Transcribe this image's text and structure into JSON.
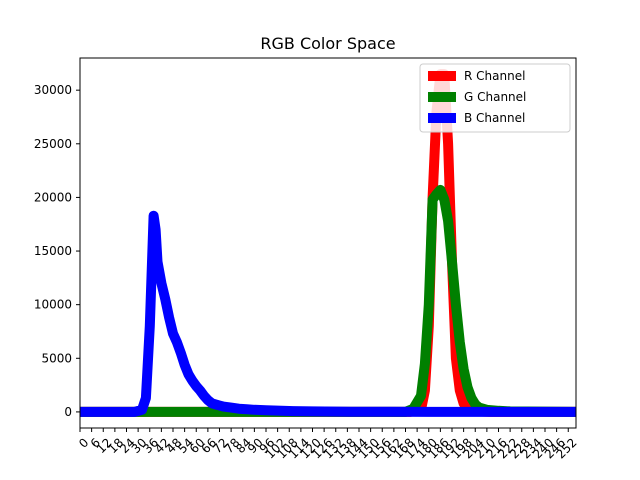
{
  "chart_data": {
    "type": "line",
    "title": "RGB Color Space",
    "xlabel": "",
    "ylabel": "",
    "xlim": [
      0,
      256
    ],
    "ylim": [
      -1500,
      33000
    ],
    "x_ticks": [
      0,
      6,
      12,
      18,
      24,
      30,
      36,
      42,
      48,
      54,
      60,
      66,
      72,
      78,
      84,
      90,
      96,
      102,
      108,
      114,
      120,
      126,
      132,
      138,
      144,
      150,
      156,
      162,
      168,
      174,
      180,
      186,
      192,
      198,
      204,
      210,
      216,
      222,
      228,
      234,
      240,
      246,
      252
    ],
    "y_ticks": [
      0,
      5000,
      10000,
      15000,
      20000,
      25000,
      30000
    ],
    "grid": false,
    "legend_position": "upper right",
    "series": [
      {
        "name": "R Channel",
        "color": "#ff0000",
        "points": [
          [
            0,
            0
          ],
          [
            30,
            0
          ],
          [
            150,
            0
          ],
          [
            170,
            0
          ],
          [
            176,
            200
          ],
          [
            178,
            2000
          ],
          [
            180,
            8000
          ],
          [
            182,
            20000
          ],
          [
            184,
            28000
          ],
          [
            186,
            31500
          ],
          [
            188,
            31500
          ],
          [
            190,
            25000
          ],
          [
            192,
            14000
          ],
          [
            194,
            5000
          ],
          [
            196,
            2000
          ],
          [
            198,
            800
          ],
          [
            200,
            300
          ],
          [
            206,
            50
          ],
          [
            212,
            0
          ],
          [
            256,
            0
          ]
        ]
      },
      {
        "name": "G Channel",
        "color": "#008000",
        "points": [
          [
            0,
            0
          ],
          [
            30,
            0
          ],
          [
            150,
            0
          ],
          [
            168,
            0
          ],
          [
            172,
            300
          ],
          [
            176,
            1500
          ],
          [
            178,
            4500
          ],
          [
            180,
            10000
          ],
          [
            182,
            19800
          ],
          [
            184,
            20300
          ],
          [
            186,
            20700
          ],
          [
            188,
            19800
          ],
          [
            190,
            17800
          ],
          [
            192,
            14000
          ],
          [
            194,
            10000
          ],
          [
            196,
            6500
          ],
          [
            198,
            4000
          ],
          [
            200,
            2300
          ],
          [
            202,
            1300
          ],
          [
            204,
            700
          ],
          [
            206,
            400
          ],
          [
            210,
            200
          ],
          [
            216,
            100
          ],
          [
            222,
            50
          ],
          [
            256,
            0
          ]
        ]
      },
      {
        "name": "B Channel",
        "color": "#0000ff",
        "points": [
          [
            0,
            0
          ],
          [
            28,
            0
          ],
          [
            32,
            200
          ],
          [
            34,
            1300
          ],
          [
            36,
            8000
          ],
          [
            38,
            18300
          ],
          [
            39,
            17000
          ],
          [
            40,
            14000
          ],
          [
            42,
            12000
          ],
          [
            44,
            10500
          ],
          [
            46,
            8800
          ],
          [
            48,
            7300
          ],
          [
            50,
            6500
          ],
          [
            52,
            5500
          ],
          [
            54,
            4400
          ],
          [
            56,
            3500
          ],
          [
            58,
            2900
          ],
          [
            60,
            2400
          ],
          [
            62,
            2000
          ],
          [
            64,
            1500
          ],
          [
            66,
            1100
          ],
          [
            68,
            800
          ],
          [
            70,
            700
          ],
          [
            72,
            600
          ],
          [
            74,
            500
          ],
          [
            78,
            400
          ],
          [
            82,
            300
          ],
          [
            86,
            250
          ],
          [
            90,
            200
          ],
          [
            96,
            150
          ],
          [
            102,
            120
          ],
          [
            110,
            80
          ],
          [
            120,
            50
          ],
          [
            140,
            20
          ],
          [
            160,
            10
          ],
          [
            180,
            5
          ],
          [
            200,
            0
          ],
          [
            256,
            0
          ]
        ]
      }
    ]
  }
}
